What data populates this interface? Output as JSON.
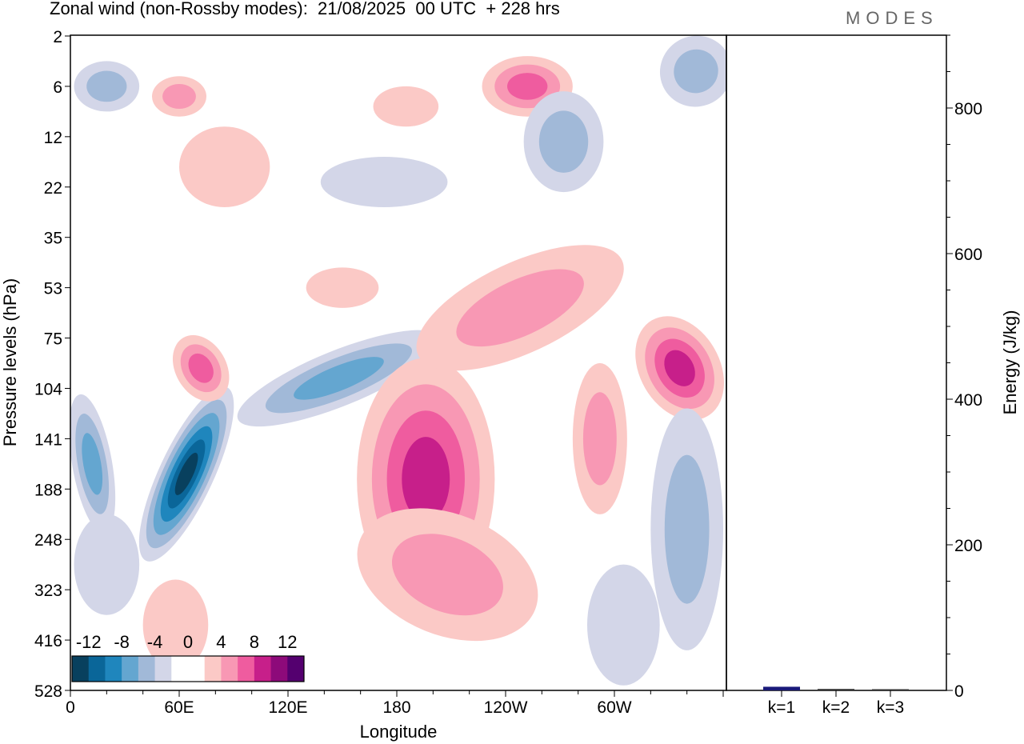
{
  "title": "Zonal wind (non-Rossby modes):  21/08/2025  00 UTC  + 228 hrs",
  "logo": "MODES",
  "colors": [
    "#08405e",
    "#0a6699",
    "#1f86bd",
    "#64a6d0",
    "#a1b9d8",
    "#d3d6e8",
    "#ffffff",
    "#ffffff",
    "#fbc9c6",
    "#f898b4",
    "#ef5c9f",
    "#c71f8a",
    "#8d0a7a",
    "#54006f"
  ],
  "chart_data": [
    {
      "type": "heatmap",
      "title": "Zonal wind (non-Rossby modes)",
      "xlabel": "Longitude",
      "ylabel": "Pressure levels (hPa)",
      "x_ticks": [
        "0",
        "60E",
        "120E",
        "180",
        "120W",
        "60W"
      ],
      "x_tick_values": [
        0,
        60,
        120,
        180,
        240,
        300
      ],
      "xlim": [
        0,
        360
      ],
      "y_levels": [
        "2",
        "6",
        "12",
        "22",
        "35",
        "53",
        "75",
        "104",
        "141",
        "188",
        "248",
        "323",
        "416",
        "528"
      ],
      "colorbar": {
        "labels": [
          "-12",
          "-8",
          "-4",
          "0",
          "4",
          "8",
          "12"
        ],
        "range": [
          -14,
          14
        ],
        "step": 2
      },
      "features": [
        {
          "lon": 12,
          "lev": 8.5,
          "rx": 11,
          "ry": 1.4,
          "rot": -10,
          "values": [
            -3,
            -5,
            -7
          ]
        },
        {
          "lon": 64,
          "lev": 8.7,
          "rx": 15,
          "ry": 1.9,
          "rot": 25,
          "values": [
            -3,
            -5,
            -7,
            -9,
            -11,
            -13
          ]
        },
        {
          "lon": 148,
          "lev": 6.8,
          "rx": 60,
          "ry": 0.55,
          "rot": -22,
          "values": [
            -3,
            -5,
            -7
          ]
        },
        {
          "lon": 196,
          "lev": 8.8,
          "rx": 38,
          "ry": 2.4,
          "rot": 0,
          "values": [
            3,
            5,
            7,
            9
          ]
        },
        {
          "lon": 208,
          "lev": 10.7,
          "rx": 52,
          "ry": 1.2,
          "rot": 22,
          "values": [
            3,
            5
          ]
        },
        {
          "lon": 248,
          "lev": 5.4,
          "rx": 62,
          "ry": 0.9,
          "rot": -25,
          "values": [
            3,
            5
          ]
        },
        {
          "lon": 336,
          "lev": 6.6,
          "rx": 22,
          "ry": 1.1,
          "rot": -30,
          "values": [
            3,
            5,
            7,
            9
          ]
        },
        {
          "lon": 340,
          "lev": 9.8,
          "rx": 20,
          "ry": 2.4,
          "rot": 0,
          "values": [
            -3,
            -5
          ]
        },
        {
          "lon": 72,
          "lev": 6.6,
          "rx": 14,
          "ry": 0.7,
          "rot": -30,
          "values": [
            3,
            5,
            7
          ]
        },
        {
          "lon": 252,
          "lev": 1.0,
          "rx": 25,
          "ry": 0.6,
          "rot": 0,
          "values": [
            3,
            5,
            7
          ]
        },
        {
          "lon": 345,
          "lev": 0.7,
          "rx": 20,
          "ry": 0.7,
          "rot": -30,
          "values": [
            -3,
            -5
          ]
        },
        {
          "lon": 85,
          "lev": 2.6,
          "rx": 25,
          "ry": 0.8,
          "rot": 0,
          "values": [
            3
          ]
        },
        {
          "lon": 173,
          "lev": 2.9,
          "rx": 35,
          "ry": 0.5,
          "rot": 0,
          "values": [
            -3
          ]
        },
        {
          "lon": 272,
          "lev": 2.1,
          "rx": 22,
          "ry": 1.0,
          "rot": 0,
          "values": [
            -3,
            -5
          ]
        },
        {
          "lon": 58,
          "lev": 11.7,
          "rx": 18,
          "ry": 0.9,
          "rot": 0,
          "values": [
            3
          ]
        },
        {
          "lon": 305,
          "lev": 11.7,
          "rx": 20,
          "ry": 1.2,
          "rot": 0,
          "values": [
            -3
          ]
        },
        {
          "lon": 292,
          "lev": 8.0,
          "rx": 15,
          "ry": 1.5,
          "rot": 0,
          "values": [
            3,
            5
          ]
        },
        {
          "lon": 20,
          "lev": 1.0,
          "rx": 18,
          "ry": 0.5,
          "rot": 0,
          "values": [
            -3,
            -5
          ]
        },
        {
          "lon": 60,
          "lev": 1.2,
          "rx": 15,
          "ry": 0.4,
          "rot": 0,
          "values": [
            3,
            5
          ]
        },
        {
          "lon": 185,
          "lev": 1.4,
          "rx": 18,
          "ry": 0.4,
          "rot": 0,
          "values": [
            3
          ]
        },
        {
          "lon": 20,
          "lev": 10.5,
          "rx": 18,
          "ry": 1.0,
          "rot": 0,
          "values": [
            -3
          ]
        },
        {
          "lon": 150,
          "lev": 5.0,
          "rx": 20,
          "ry": 0.4,
          "rot": 0,
          "values": [
            3
          ]
        }
      ]
    },
    {
      "type": "bar",
      "ylabel": "Energy (J/kg)",
      "categories": [
        "k=1",
        "k=2",
        "k=3"
      ],
      "values": [
        5,
        2,
        1
      ],
      "bar_colors": [
        "#1a1a7a",
        "#333333",
        "#333333"
      ],
      "ylim": [
        0,
        900
      ],
      "y_ticks": [
        "0",
        "200",
        "400",
        "600",
        "800"
      ],
      "y_tick_values": [
        0,
        200,
        400,
        600,
        800
      ]
    }
  ]
}
